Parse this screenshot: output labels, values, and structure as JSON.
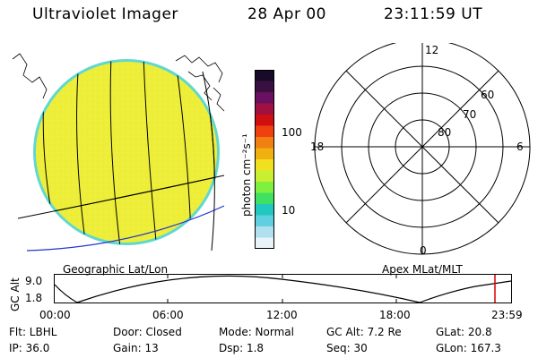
{
  "header": {
    "instrument": "Ultraviolet Imager",
    "date": "28 Apr 00",
    "time": "23:11:59 UT"
  },
  "colors": {
    "disk_fill": "#f0f035",
    "disk_rim": "#60d8d0",
    "grid_line": "#000000",
    "coast_line": "#2233cc",
    "marker_line": "#dd0000"
  },
  "colorbar": {
    "unit_label": "photon cm⁻²s⁻¹",
    "tick_100": "100",
    "tick_10": "10",
    "colors_top_to_bottom": [
      "#1a0a2a",
      "#3a1040",
      "#6a1060",
      "#a01040",
      "#d01010",
      "#f04010",
      "#f08010",
      "#f0b010",
      "#f0e020",
      "#c8f030",
      "#80f040",
      "#40e060",
      "#20c8c0",
      "#60d0e0",
      "#b0e0f0",
      "#e8f4f8"
    ]
  },
  "left_panel": {
    "caption": "Geographic Lat/Lon"
  },
  "polar_plot": {
    "caption": "Apex MLat/MLT",
    "mlt_top": "12",
    "mlt_bottom": "0",
    "mlt_left": "18",
    "mlt_right": "6",
    "lat_60": "60",
    "lat_70": "70",
    "lat_80": "80"
  },
  "altitude_plot": {
    "ylabel": "GC Alt",
    "y_max": "9.0",
    "y_min": "1.8",
    "x_ticks": [
      "00:00",
      "06:00",
      "12:00",
      "18:00",
      "23:59"
    ]
  },
  "info": {
    "filter": "Flt: LBHL",
    "ip": "IP: 36.0",
    "door": "Door: Closed",
    "gain": "Gain: 13",
    "mode": "Mode: Normal",
    "dsp": "Dsp:    1.8",
    "gc_alt": "GC Alt: 7.2 Re",
    "seq": "Seq: 30",
    "glat": "GLat:  20.8",
    "glon": "GLon: 167.3"
  }
}
